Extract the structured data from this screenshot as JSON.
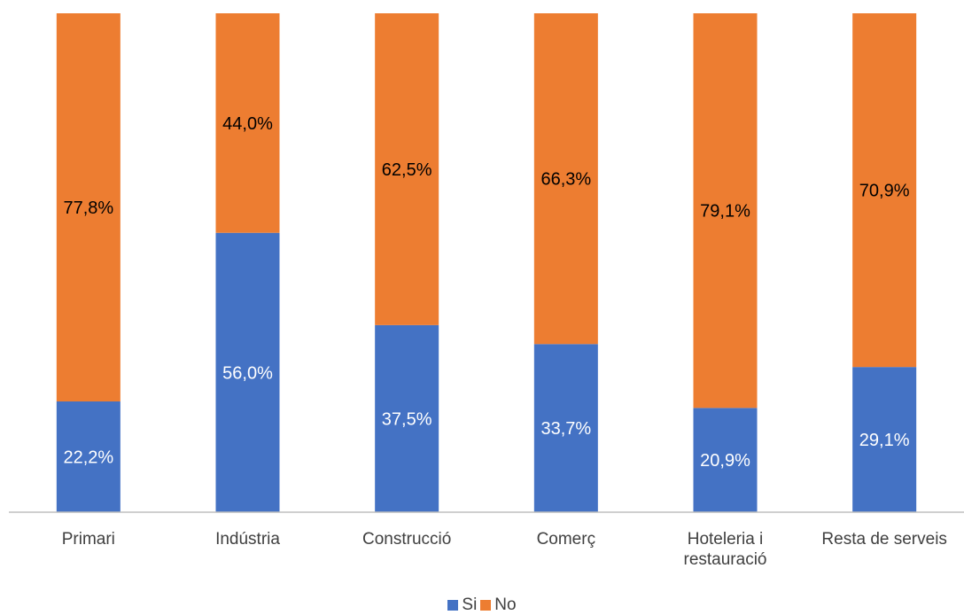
{
  "chart_data": {
    "type": "bar",
    "stacked": true,
    "percent_stacked": true,
    "categories": [
      "Primari",
      "Indústria",
      "Construcció",
      "Comerç",
      "Hoteleria i restauració",
      "Resta de serveis"
    ],
    "category_lines": [
      [
        "Primari"
      ],
      [
        "Indústria"
      ],
      [
        "Construcció"
      ],
      [
        "Comerç"
      ],
      [
        "Hoteleria i",
        "restauració"
      ],
      [
        "Resta de serveis"
      ]
    ],
    "series": [
      {
        "name": "Si",
        "color": "#4472C4",
        "values": [
          22.2,
          56.0,
          37.5,
          33.7,
          20.9,
          29.1
        ],
        "labels": [
          "22,2%",
          "56,0%",
          "37,5%",
          "33,7%",
          "20,9%",
          "29,1%"
        ],
        "label_color": "#ffffff"
      },
      {
        "name": "No",
        "color": "#ED7D31",
        "values": [
          77.8,
          44.0,
          62.5,
          66.3,
          79.1,
          70.9
        ],
        "labels": [
          "77,8%",
          "44,0%",
          "62,5%",
          "66,3%",
          "79,1%",
          "70,9%"
        ],
        "label_color": "#000000"
      }
    ],
    "ylim": [
      0,
      100
    ],
    "title": "",
    "xlabel": "",
    "ylabel": "",
    "grid": false,
    "legend_position": "bottom"
  }
}
